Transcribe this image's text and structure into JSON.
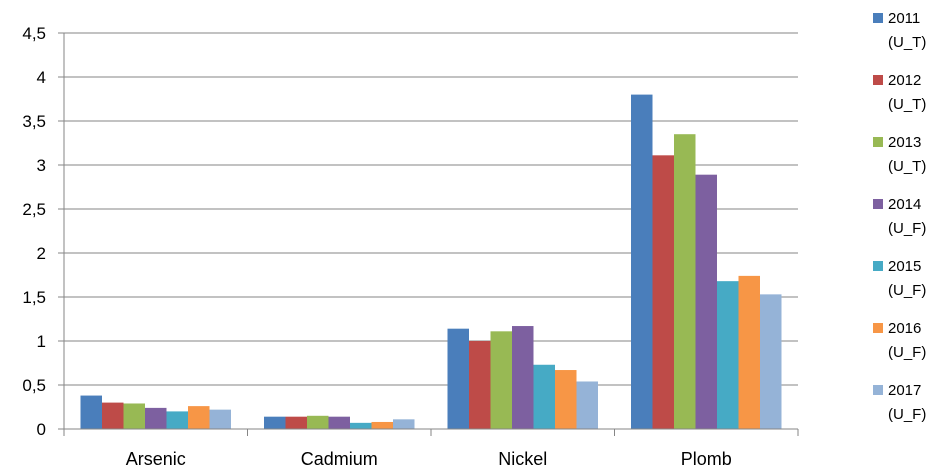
{
  "chart_data": {
    "type": "bar",
    "title": "",
    "xlabel": "",
    "ylabel": "",
    "categories": [
      "Arsenic",
      "Cadmium",
      "Nickel",
      "Plomb"
    ],
    "ylim": [
      0,
      4.5
    ],
    "yticks": [
      "0",
      "0,5",
      "1",
      "1,5",
      "2",
      "2,5",
      "3",
      "3,5",
      "4",
      "4,5"
    ],
    "grid": "horizontal",
    "legend_position": "right",
    "series": [
      {
        "name": "2011 (U_T)",
        "line1": "2011",
        "line2": "(U_T)",
        "color": "#4a7ebb",
        "values": [
          0.38,
          0.14,
          1.14,
          3.8
        ]
      },
      {
        "name": "2012 (U_T)",
        "line1": "2012",
        "line2": "(U_T)",
        "color": "#be4b48",
        "values": [
          0.3,
          0.14,
          1.0,
          3.11
        ]
      },
      {
        "name": "2013 (U_T)",
        "line1": "2013",
        "line2": "(U_T)",
        "color": "#98b954",
        "values": [
          0.29,
          0.15,
          1.11,
          3.35
        ]
      },
      {
        "name": "2014 (U_F)",
        "line1": "2014",
        "line2": "(U_F)",
        "color": "#7d60a0",
        "values": [
          0.24,
          0.14,
          1.17,
          2.89
        ]
      },
      {
        "name": "2015 (U_F)",
        "line1": "2015",
        "line2": "(U_F)",
        "color": "#46aac5",
        "values": [
          0.2,
          0.07,
          0.73,
          1.68
        ]
      },
      {
        "name": "2016 (U_F)",
        "line1": "2016",
        "line2": "(U_F)",
        "color": "#f79646",
        "values": [
          0.26,
          0.08,
          0.67,
          1.74
        ]
      },
      {
        "name": "2017 (U_F)",
        "line1": "2017",
        "line2": "(U_F)",
        "color": "#95b3d7",
        "values": [
          0.22,
          0.11,
          0.54,
          1.53
        ]
      }
    ]
  }
}
